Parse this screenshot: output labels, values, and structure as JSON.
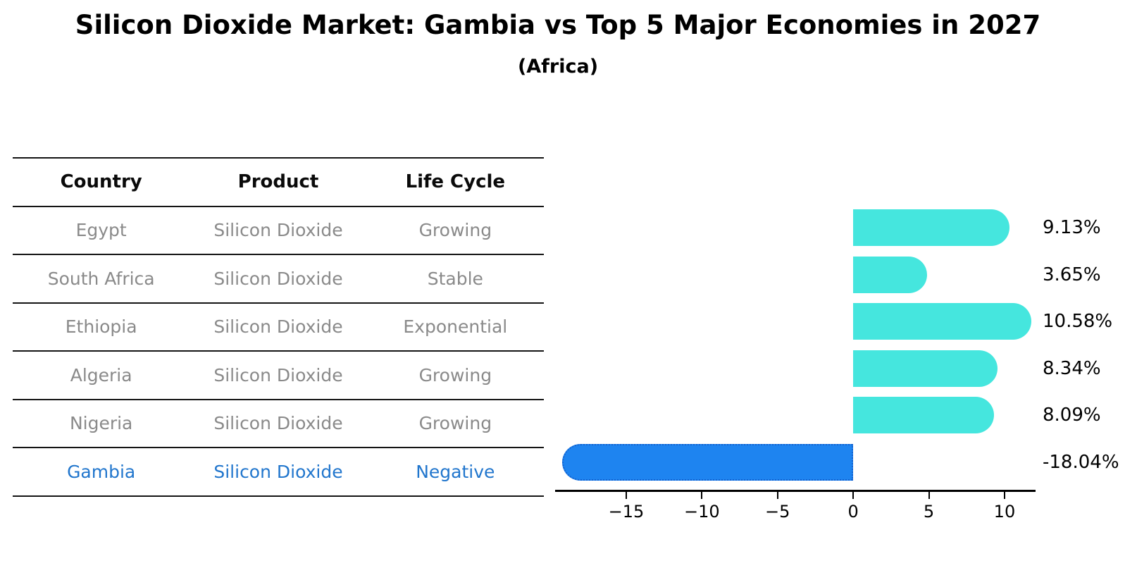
{
  "title": "Silicon Dioxide Market: Gambia vs Top 5 Major Economies in 2027",
  "subtitle": "(Africa)",
  "table": {
    "headers": [
      "Country",
      "Product",
      "Life Cycle"
    ],
    "rows": [
      {
        "country": "Egypt",
        "product": "Silicon Dioxide",
        "life_cycle": "Growing",
        "highlight": false
      },
      {
        "country": "South Africa",
        "product": "Silicon Dioxide",
        "life_cycle": "Stable",
        "highlight": false
      },
      {
        "country": "Ethiopia",
        "product": "Silicon Dioxide",
        "life_cycle": "Exponential",
        "highlight": false
      },
      {
        "country": "Algeria",
        "product": "Silicon Dioxide",
        "life_cycle": "Growing",
        "highlight": false
      },
      {
        "country": "Nigeria",
        "product": "Silicon Dioxide",
        "life_cycle": "Growing",
        "highlight": false
      },
      {
        "country": "Gambia",
        "product": "Silicon Dioxide",
        "life_cycle": "Negative",
        "highlight": true
      }
    ]
  },
  "chart_data": {
    "type": "bar",
    "orientation": "horizontal",
    "categories": [
      "Egypt",
      "South Africa",
      "Ethiopia",
      "Algeria",
      "Nigeria",
      "Gambia"
    ],
    "values": [
      9.13,
      3.65,
      10.58,
      8.34,
      8.09,
      -18.04
    ],
    "value_labels": [
      "9.13%",
      "3.65%",
      "10.58%",
      "8.34%",
      "8.09%",
      "-18.04%"
    ],
    "highlight_index": 5,
    "xticks": [
      -15,
      -10,
      -5,
      0,
      5,
      10
    ],
    "xtick_labels": [
      "−15",
      "−10",
      "−5",
      "0",
      "5",
      "10"
    ],
    "xlim": [
      -19.7,
      12.05
    ],
    "grid": false,
    "legend": false,
    "bar_color": "#45e6de",
    "highlight_bar_color": "#1e84f0",
    "highlight_bar_edge_color": "#1261cf",
    "axis_color": "#000000",
    "row_text_color": "#8a8a8a",
    "highlight_text_color": "#2176cd"
  }
}
